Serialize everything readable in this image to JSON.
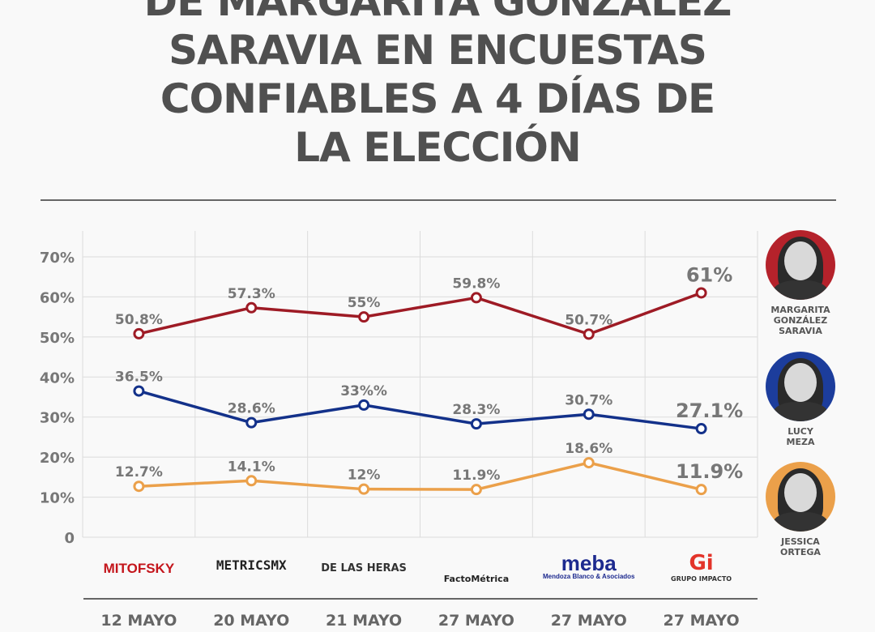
{
  "title_lines": [
    "DE MARGARITA GONZÁLEZ",
    "SARAVIA EN ENCUESTAS",
    "CONFIABLES A 4 DÍAS DE",
    "LA ELECCIÓN"
  ],
  "chart_data": {
    "type": "line",
    "categories": [
      "12 MAYO",
      "20 MAYO",
      "21 MAYO",
      "27 MAYO",
      "27 MAYO",
      "27 MAYO"
    ],
    "pollsters": [
      "MITOFSKY",
      "METRICSMX",
      "DE LAS HERAS",
      "FactoMétrica",
      "meba",
      "GRUPO IMPACTO"
    ],
    "pollster_sublabels": [
      "",
      "",
      "",
      "",
      "Mendoza Blanco & Asociados",
      ""
    ],
    "y_ticks": [
      "0",
      "10%",
      "20%",
      "30%",
      "40%",
      "50%",
      "60%",
      "70%"
    ],
    "ylim": [
      0,
      70
    ],
    "grid": true,
    "series": [
      {
        "name": "MARGARITA GONZÁLEZ SARAVIA",
        "color": "#9e1b25",
        "values": [
          50.8,
          57.3,
          55,
          59.8,
          50.7,
          61
        ],
        "labels": [
          "50.8%",
          "57.3%",
          "55%",
          "59.8%",
          "50.7%",
          "61%"
        ]
      },
      {
        "name": "LUCY MEZA",
        "color": "#13318a",
        "values": [
          36.5,
          28.6,
          33,
          28.3,
          30.7,
          27.1
        ],
        "labels": [
          "36.5%",
          "28.6%",
          "33%%",
          "28.3%",
          "30.7%",
          "27.1%"
        ]
      },
      {
        "name": "JESSICA ORTEGA",
        "color": "#eba04a",
        "values": [
          12.7,
          14.1,
          12,
          11.9,
          18.6,
          11.9
        ],
        "labels": [
          "12.7%",
          "14.1%",
          "12%",
          "11.9%",
          "18.6%",
          "11.9%"
        ]
      }
    ]
  },
  "candidates": [
    {
      "name": "MARGARITA GONZÁLEZ SARAVIA",
      "lines": [
        "MARGARITA",
        "GONZÁLEZ",
        "SARAVIA"
      ],
      "bg": "#b5222b"
    },
    {
      "name": "LUCY MEZA",
      "lines": [
        "LUCY",
        "MEZA"
      ],
      "bg": "#1c3d9c"
    },
    {
      "name": "JESSICA ORTEGA",
      "lines": [
        "JESSICA",
        "ORTEGA"
      ],
      "bg": "#eba04a"
    }
  ]
}
